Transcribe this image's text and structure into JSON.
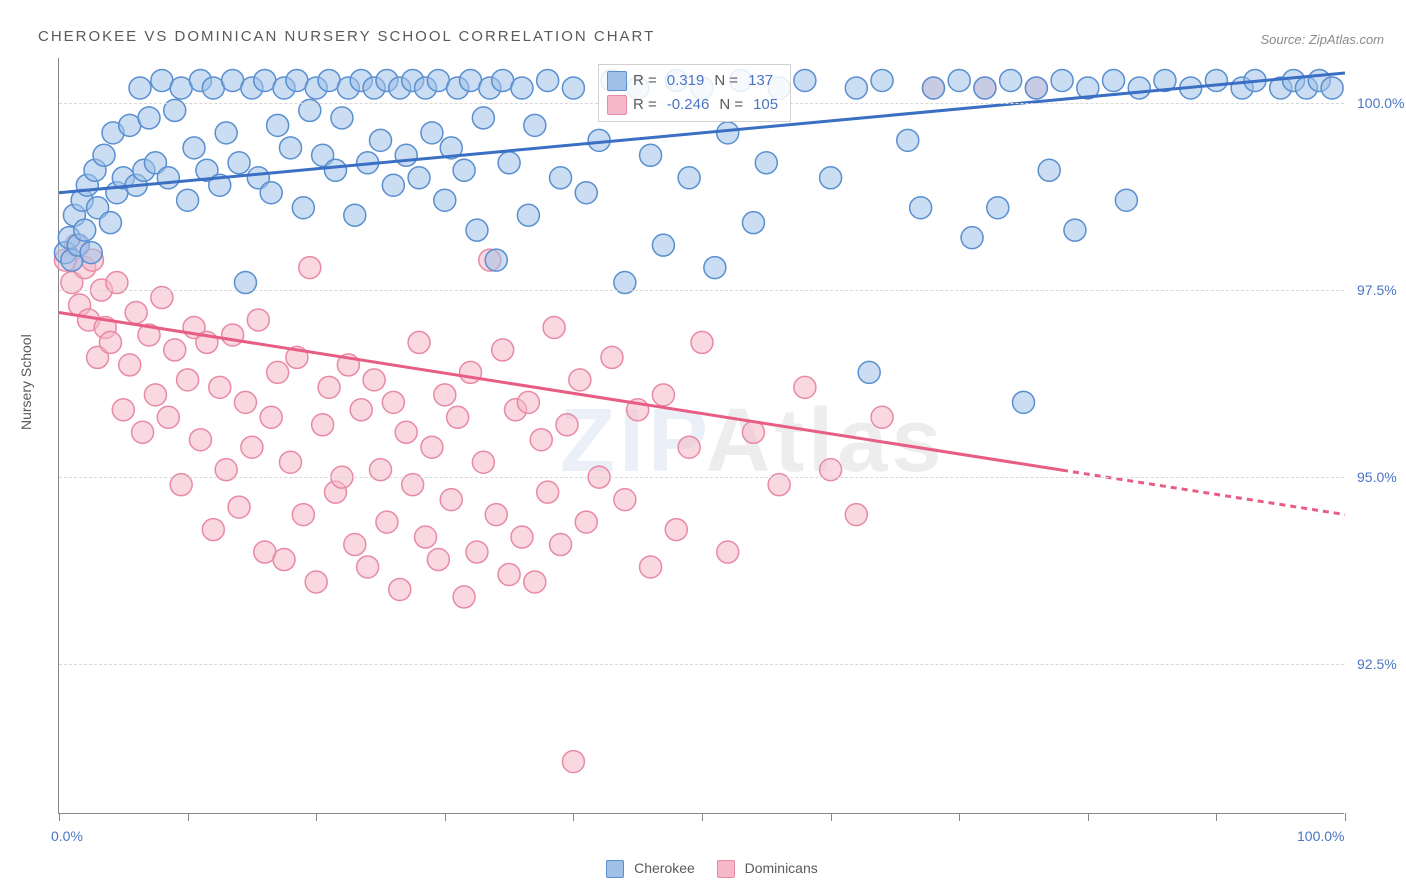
{
  "title": "CHEROKEE VS DOMINICAN NURSERY SCHOOL CORRELATION CHART",
  "source_label": "Source: ZipAtlas.com",
  "ylabel": "Nursery School",
  "watermark_a": "ZIP",
  "watermark_b": "Atlas",
  "chart": {
    "type": "scatter",
    "background_color": "#ffffff",
    "grid_color": "#d8d8d8",
    "axis_color": "#888888",
    "tick_label_color": "#4a74c4",
    "xlim": [
      0,
      100
    ],
    "ylim": [
      90.5,
      100.6
    ],
    "ytick_positions": [
      92.5,
      95.0,
      97.5,
      100.0
    ],
    "ytick_labels": [
      "92.5%",
      "95.0%",
      "97.5%",
      "100.0%"
    ],
    "xtick_positions": [
      0,
      10,
      20,
      30,
      40,
      50,
      60,
      70,
      80,
      90,
      100
    ],
    "xtick_labels_visible": {
      "0": "0.0%",
      "100": "100.0%"
    },
    "marker_radius": 11,
    "marker_stroke_width": 1.5,
    "line_width": 3
  },
  "series": {
    "cherokee": {
      "label": "Cherokee",
      "fill_color": "#9fc1e8",
      "stroke_color": "#5a8fd0",
      "line_color": "#3a6fc4",
      "fill_opacity": 0.55,
      "R": "0.319",
      "N": "137",
      "trend": {
        "x1": 0,
        "y1": 98.8,
        "x2": 100,
        "y2": 100.4,
        "solid_until_x": 100
      },
      "points": [
        [
          0.5,
          98.0
        ],
        [
          0.8,
          98.2
        ],
        [
          1,
          97.9
        ],
        [
          1.2,
          98.5
        ],
        [
          1.5,
          98.1
        ],
        [
          1.8,
          98.7
        ],
        [
          2,
          98.3
        ],
        [
          2.2,
          98.9
        ],
        [
          2.5,
          98.0
        ],
        [
          2.8,
          99.1
        ],
        [
          3,
          98.6
        ],
        [
          3.5,
          99.3
        ],
        [
          4,
          98.4
        ],
        [
          4.2,
          99.6
        ],
        [
          4.5,
          98.8
        ],
        [
          5,
          99.0
        ],
        [
          5.5,
          99.7
        ],
        [
          6,
          98.9
        ],
        [
          6.3,
          100.2
        ],
        [
          6.6,
          99.1
        ],
        [
          7,
          99.8
        ],
        [
          7.5,
          99.2
        ],
        [
          8,
          100.3
        ],
        [
          8.5,
          99.0
        ],
        [
          9,
          99.9
        ],
        [
          9.5,
          100.2
        ],
        [
          10,
          98.7
        ],
        [
          10.5,
          99.4
        ],
        [
          11,
          100.3
        ],
        [
          11.5,
          99.1
        ],
        [
          12,
          100.2
        ],
        [
          12.5,
          98.9
        ],
        [
          13,
          99.6
        ],
        [
          13.5,
          100.3
        ],
        [
          14,
          99.2
        ],
        [
          14.5,
          97.6
        ],
        [
          15,
          100.2
        ],
        [
          15.5,
          99.0
        ],
        [
          16,
          100.3
        ],
        [
          16.5,
          98.8
        ],
        [
          17,
          99.7
        ],
        [
          17.5,
          100.2
        ],
        [
          18,
          99.4
        ],
        [
          18.5,
          100.3
        ],
        [
          19,
          98.6
        ],
        [
          19.5,
          99.9
        ],
        [
          20,
          100.2
        ],
        [
          20.5,
          99.3
        ],
        [
          21,
          100.3
        ],
        [
          21.5,
          99.1
        ],
        [
          22,
          99.8
        ],
        [
          22.5,
          100.2
        ],
        [
          23,
          98.5
        ],
        [
          23.5,
          100.3
        ],
        [
          24,
          99.2
        ],
        [
          24.5,
          100.2
        ],
        [
          25,
          99.5
        ],
        [
          25.5,
          100.3
        ],
        [
          26,
          98.9
        ],
        [
          26.5,
          100.2
        ],
        [
          27,
          99.3
        ],
        [
          27.5,
          100.3
        ],
        [
          28,
          99.0
        ],
        [
          28.5,
          100.2
        ],
        [
          29,
          99.6
        ],
        [
          29.5,
          100.3
        ],
        [
          30,
          98.7
        ],
        [
          30.5,
          99.4
        ],
        [
          31,
          100.2
        ],
        [
          31.5,
          99.1
        ],
        [
          32,
          100.3
        ],
        [
          32.5,
          98.3
        ],
        [
          33,
          99.8
        ],
        [
          33.5,
          100.2
        ],
        [
          34,
          97.9
        ],
        [
          34.5,
          100.3
        ],
        [
          35,
          99.2
        ],
        [
          36,
          100.2
        ],
        [
          36.5,
          98.5
        ],
        [
          37,
          99.7
        ],
        [
          38,
          100.3
        ],
        [
          39,
          99.0
        ],
        [
          40,
          100.2
        ],
        [
          41,
          98.8
        ],
        [
          42,
          99.5
        ],
        [
          43,
          100.3
        ],
        [
          44,
          97.6
        ],
        [
          45,
          100.2
        ],
        [
          46,
          99.3
        ],
        [
          47,
          98.1
        ],
        [
          48,
          100.3
        ],
        [
          49,
          99.0
        ],
        [
          50,
          100.2
        ],
        [
          51,
          97.8
        ],
        [
          52,
          99.6
        ],
        [
          53,
          100.3
        ],
        [
          54,
          98.4
        ],
        [
          55,
          99.2
        ],
        [
          56,
          100.2
        ],
        [
          58,
          100.3
        ],
        [
          60,
          99.0
        ],
        [
          62,
          100.2
        ],
        [
          63,
          96.4
        ],
        [
          64,
          100.3
        ],
        [
          66,
          99.5
        ],
        [
          67,
          98.6
        ],
        [
          68,
          100.2
        ],
        [
          70,
          100.3
        ],
        [
          71,
          98.2
        ],
        [
          72,
          100.2
        ],
        [
          73,
          98.6
        ],
        [
          74,
          100.3
        ],
        [
          75,
          96.0
        ],
        [
          76,
          100.2
        ],
        [
          77,
          99.1
        ],
        [
          78,
          100.3
        ],
        [
          79,
          98.3
        ],
        [
          80,
          100.2
        ],
        [
          82,
          100.3
        ],
        [
          83,
          98.7
        ],
        [
          84,
          100.2
        ],
        [
          86,
          100.3
        ],
        [
          88,
          100.2
        ],
        [
          90,
          100.3
        ],
        [
          92,
          100.2
        ],
        [
          93,
          100.3
        ],
        [
          95,
          100.2
        ],
        [
          96,
          100.3
        ],
        [
          97,
          100.2
        ],
        [
          98,
          100.3
        ],
        [
          99,
          100.2
        ]
      ]
    },
    "dominicans": {
      "label": "Dominicans",
      "fill_color": "#f4b8c8",
      "stroke_color": "#e88aa5",
      "line_color": "#e85d84",
      "fill_opacity": 0.55,
      "R": "-0.246",
      "N": "105",
      "trend": {
        "x1": 0,
        "y1": 97.2,
        "x2": 100,
        "y2": 94.5,
        "solid_until_x": 78
      },
      "points": [
        [
          0.5,
          97.9
        ],
        [
          1,
          97.6
        ],
        [
          1.3,
          98.1
        ],
        [
          1.6,
          97.3
        ],
        [
          2,
          97.8
        ],
        [
          2.3,
          97.1
        ],
        [
          2.6,
          97.9
        ],
        [
          3,
          96.6
        ],
        [
          3.3,
          97.5
        ],
        [
          3.6,
          97.0
        ],
        [
          4,
          96.8
        ],
        [
          4.5,
          97.6
        ],
        [
          5,
          95.9
        ],
        [
          5.5,
          96.5
        ],
        [
          6,
          97.2
        ],
        [
          6.5,
          95.6
        ],
        [
          7,
          96.9
        ],
        [
          7.5,
          96.1
        ],
        [
          8,
          97.4
        ],
        [
          8.5,
          95.8
        ],
        [
          9,
          96.7
        ],
        [
          9.5,
          94.9
        ],
        [
          10,
          96.3
        ],
        [
          10.5,
          97.0
        ],
        [
          11,
          95.5
        ],
        [
          11.5,
          96.8
        ],
        [
          12,
          94.3
        ],
        [
          12.5,
          96.2
        ],
        [
          13,
          95.1
        ],
        [
          13.5,
          96.9
        ],
        [
          14,
          94.6
        ],
        [
          14.5,
          96.0
        ],
        [
          15,
          95.4
        ],
        [
          15.5,
          97.1
        ],
        [
          16,
          94.0
        ],
        [
          16.5,
          95.8
        ],
        [
          17,
          96.4
        ],
        [
          17.5,
          93.9
        ],
        [
          18,
          95.2
        ],
        [
          18.5,
          96.6
        ],
        [
          19,
          94.5
        ],
        [
          19.5,
          97.8
        ],
        [
          20,
          93.6
        ],
        [
          20.5,
          95.7
        ],
        [
          21,
          96.2
        ],
        [
          21.5,
          94.8
        ],
        [
          22,
          95.0
        ],
        [
          22.5,
          96.5
        ],
        [
          23,
          94.1
        ],
        [
          23.5,
          95.9
        ],
        [
          24,
          93.8
        ],
        [
          24.5,
          96.3
        ],
        [
          25,
          95.1
        ],
        [
          25.5,
          94.4
        ],
        [
          26,
          96.0
        ],
        [
          26.5,
          93.5
        ],
        [
          27,
          95.6
        ],
        [
          27.5,
          94.9
        ],
        [
          28,
          96.8
        ],
        [
          28.5,
          94.2
        ],
        [
          29,
          95.4
        ],
        [
          29.5,
          93.9
        ],
        [
          30,
          96.1
        ],
        [
          30.5,
          94.7
        ],
        [
          31,
          95.8
        ],
        [
          31.5,
          93.4
        ],
        [
          32,
          96.4
        ],
        [
          32.5,
          94.0
        ],
        [
          33,
          95.2
        ],
        [
          33.5,
          97.9
        ],
        [
          34,
          94.5
        ],
        [
          34.5,
          96.7
        ],
        [
          35,
          93.7
        ],
        [
          35.5,
          95.9
        ],
        [
          36,
          94.2
        ],
        [
          36.5,
          96.0
        ],
        [
          37,
          93.6
        ],
        [
          37.5,
          95.5
        ],
        [
          38,
          94.8
        ],
        [
          38.5,
          97.0
        ],
        [
          39,
          94.1
        ],
        [
          39.5,
          95.7
        ],
        [
          40,
          91.2
        ],
        [
          40.5,
          96.3
        ],
        [
          41,
          94.4
        ],
        [
          42,
          95.0
        ],
        [
          43,
          96.6
        ],
        [
          44,
          94.7
        ],
        [
          45,
          95.9
        ],
        [
          46,
          93.8
        ],
        [
          47,
          96.1
        ],
        [
          48,
          94.3
        ],
        [
          49,
          95.4
        ],
        [
          50,
          96.8
        ],
        [
          52,
          94.0
        ],
        [
          54,
          95.6
        ],
        [
          56,
          94.9
        ],
        [
          58,
          96.2
        ],
        [
          60,
          95.1
        ],
        [
          62,
          94.5
        ],
        [
          64,
          95.8
        ],
        [
          68,
          100.2
        ],
        [
          72,
          100.2
        ],
        [
          76,
          100.2
        ]
      ]
    }
  },
  "legend_box": {
    "r_label": "R =",
    "n_label": "N ="
  }
}
